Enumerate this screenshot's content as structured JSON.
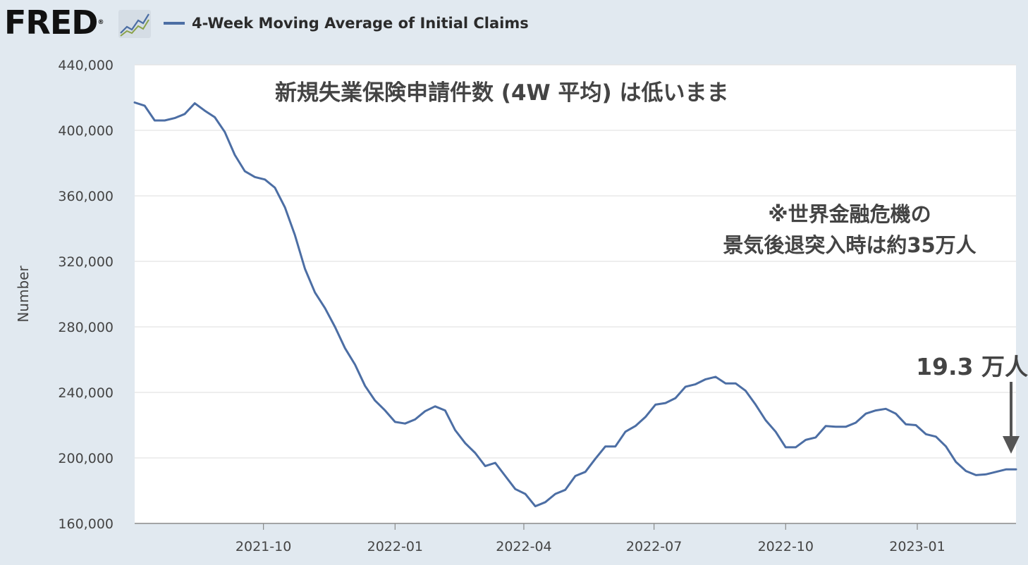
{
  "header": {
    "logo_text": "FRED",
    "logo_registered": "®",
    "logo_icon": "line-chart-icon",
    "legend_label": "4-Week Moving Average of Initial Claims",
    "legend_color": "#4c6ea4"
  },
  "annotations": {
    "title": "新規失業保険申請件数 (4W 平均) は低いまま",
    "note_line1": "※世界金融危機の",
    "note_line2": "景気後退突入時は約35万人",
    "latest_label": "19.3 万人"
  },
  "chart_data": {
    "type": "line",
    "title": "",
    "xlabel": "",
    "ylabel": "Number",
    "ylim": [
      160000,
      440000
    ],
    "yticks": [
      160000,
      200000,
      240000,
      280000,
      320000,
      360000,
      400000,
      440000
    ],
    "ytick_labels": [
      "160,000",
      "200,000",
      "240,000",
      "280,000",
      "320,000",
      "360,000",
      "400,000",
      "440,000"
    ],
    "xlim": [
      "2021-07-03",
      "2023-03-11"
    ],
    "xticks": [
      "2021-10-01",
      "2022-01-01",
      "2022-04-01",
      "2022-07-01",
      "2022-10-01",
      "2023-01-01"
    ],
    "xtick_labels": [
      "2021-10",
      "2022-01",
      "2022-04",
      "2022-07",
      "2022-10",
      "2023-01"
    ],
    "grid": true,
    "legend_position": "top",
    "series": [
      {
        "name": "4-Week Moving Average of Initial Claims",
        "color": "#4c6ea4",
        "x": [
          "2021-07-03",
          "2021-07-10",
          "2021-07-17",
          "2021-07-24",
          "2021-07-31",
          "2021-08-07",
          "2021-08-14",
          "2021-08-21",
          "2021-08-28",
          "2021-09-04",
          "2021-09-11",
          "2021-09-18",
          "2021-09-25",
          "2021-10-02",
          "2021-10-09",
          "2021-10-16",
          "2021-10-23",
          "2021-10-30",
          "2021-11-06",
          "2021-11-13",
          "2021-11-20",
          "2021-11-27",
          "2021-12-04",
          "2021-12-11",
          "2021-12-18",
          "2021-12-25",
          "2022-01-01",
          "2022-01-08",
          "2022-01-15",
          "2022-01-22",
          "2022-01-29",
          "2022-02-05",
          "2022-02-12",
          "2022-02-19",
          "2022-02-26",
          "2022-03-05",
          "2022-03-12",
          "2022-03-19",
          "2022-03-26",
          "2022-04-02",
          "2022-04-09",
          "2022-04-16",
          "2022-04-23",
          "2022-04-30",
          "2022-05-07",
          "2022-05-14",
          "2022-05-21",
          "2022-05-28",
          "2022-06-04",
          "2022-06-11",
          "2022-06-18",
          "2022-06-25",
          "2022-07-02",
          "2022-07-09",
          "2022-07-16",
          "2022-07-23",
          "2022-07-30",
          "2022-08-06",
          "2022-08-13",
          "2022-08-20",
          "2022-08-27",
          "2022-09-03",
          "2022-09-10",
          "2022-09-17",
          "2022-09-24",
          "2022-10-01",
          "2022-10-08",
          "2022-10-15",
          "2022-10-22",
          "2022-10-29",
          "2022-11-05",
          "2022-11-12",
          "2022-11-19",
          "2022-11-26",
          "2022-12-03",
          "2022-12-10",
          "2022-12-17",
          "2022-12-24",
          "2022-12-31",
          "2023-01-07",
          "2023-01-14",
          "2023-01-21",
          "2023-01-28",
          "2023-02-04",
          "2023-02-11",
          "2023-02-18",
          "2023-02-25",
          "2023-03-04",
          "2023-03-11"
        ],
        "values": [
          417000,
          415000,
          406000,
          406000,
          407500,
          410000,
          416500,
          412000,
          408000,
          399000,
          385000,
          375000,
          371500,
          370000,
          365000,
          353000,
          336000,
          315500,
          301000,
          291500,
          280000,
          267000,
          257000,
          244000,
          235000,
          229000,
          222000,
          221000,
          223500,
          228500,
          231500,
          229000,
          217000,
          209000,
          203000,
          195000,
          197000,
          189000,
          181000,
          178000,
          170500,
          173000,
          178000,
          180500,
          189000,
          191500,
          199500,
          207000,
          207000,
          216000,
          219500,
          225000,
          232500,
          233500,
          236500,
          243500,
          245000,
          248000,
          249500,
          245500,
          245500,
          241000,
          232500,
          223000,
          216000,
          206500,
          206500,
          211000,
          212500,
          219500,
          219000,
          219000,
          221500,
          227000,
          229000,
          230000,
          227000,
          220500,
          220000,
          214500,
          213000,
          207000,
          197500,
          192000,
          189500,
          190000,
          191500,
          193000,
          193000
        ]
      }
    ]
  }
}
